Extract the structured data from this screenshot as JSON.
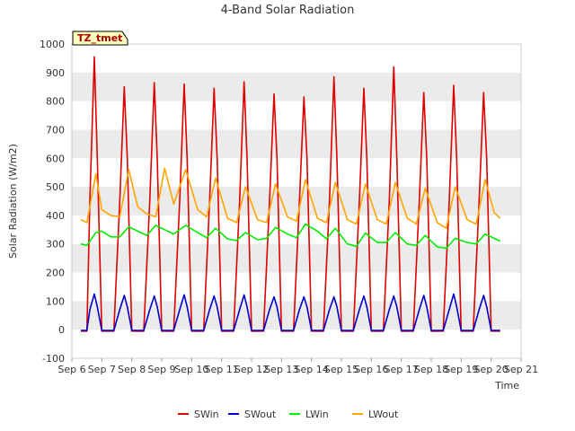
{
  "chart_data": {
    "type": "line",
    "title": "4-Band Solar Radiation",
    "xlabel": "Time",
    "ylabel": "Solar Radiation (W/m2)",
    "ylim": [
      -100,
      1000
    ],
    "yticks": [
      -100,
      0,
      100,
      200,
      300,
      400,
      500,
      600,
      700,
      800,
      900,
      1000
    ],
    "xlim": [
      6,
      21
    ],
    "xticks": [
      {
        "x": 6,
        "label": "Sep 6"
      },
      {
        "x": 7,
        "label": "Sep 7"
      },
      {
        "x": 8,
        "label": "Sep 8"
      },
      {
        "x": 9,
        "label": "Sep 9"
      },
      {
        "x": 10,
        "label": "Sep 10"
      },
      {
        "x": 11,
        "label": "Sep 11"
      },
      {
        "x": 12,
        "label": "Sep 12"
      },
      {
        "x": 13,
        "label": "Sep 13"
      },
      {
        "x": 14,
        "label": "Sep 14"
      },
      {
        "x": 15,
        "label": "Sep 15"
      },
      {
        "x": 16,
        "label": "Sep 16"
      },
      {
        "x": 17,
        "label": "Sep 17"
      },
      {
        "x": 18,
        "label": "Sep 18"
      },
      {
        "x": 19,
        "label": "Sep 19"
      },
      {
        "x": 20,
        "label": "Sep 20"
      },
      {
        "x": 21,
        "label": "Sep 21"
      }
    ],
    "grid": "horizontal bands",
    "legend_position": "bottom",
    "annotation": "TZ_tmet",
    "series": [
      {
        "name": "SWin",
        "color": "#dd0000",
        "x": [
          6.3,
          6.5,
          6.6,
          6.75,
          6.85,
          7.0,
          7.2,
          7.4,
          7.6,
          7.75,
          7.85,
          8.0,
          8.2,
          8.4,
          8.6,
          8.75,
          8.85,
          9.0,
          9.2,
          9.4,
          9.6,
          9.75,
          9.85,
          10.0,
          10.2,
          10.4,
          10.6,
          10.75,
          10.85,
          11.0,
          11.2,
          11.4,
          11.6,
          11.75,
          11.85,
          12.0,
          12.2,
          12.4,
          12.6,
          12.75,
          12.85,
          13.0,
          13.2,
          13.4,
          13.6,
          13.75,
          13.85,
          14.0,
          14.2,
          14.4,
          14.6,
          14.75,
          14.85,
          15.0,
          15.2,
          15.4,
          15.6,
          15.75,
          15.85,
          16.0,
          16.2,
          16.4,
          16.6,
          16.75,
          16.85,
          17.0,
          17.2,
          17.4,
          17.6,
          17.75,
          17.85,
          18.0,
          18.2,
          18.4,
          18.6,
          18.75,
          18.85,
          19.0,
          19.2,
          19.4,
          19.6,
          19.75,
          19.85,
          20.0,
          20.2,
          20.3
        ],
        "y": [
          -5,
          -5,
          450,
          955,
          600,
          -5,
          -5,
          -5,
          450,
          850,
          600,
          -5,
          -5,
          -5,
          450,
          865,
          600,
          -5,
          -5,
          -5,
          450,
          860,
          600,
          -5,
          -5,
          -5,
          450,
          845,
          600,
          -5,
          -5,
          -5,
          450,
          868,
          600,
          -5,
          -5,
          -5,
          450,
          825,
          600,
          -5,
          -5,
          -5,
          450,
          815,
          600,
          -5,
          -5,
          -5,
          450,
          885,
          600,
          -5,
          -5,
          -5,
          450,
          845,
          600,
          -5,
          -5,
          -5,
          450,
          920,
          600,
          -5,
          -5,
          -5,
          450,
          830,
          600,
          -5,
          -5,
          -5,
          450,
          855,
          600,
          -5,
          -5,
          -5,
          450,
          830,
          600,
          -5,
          -5,
          -5
        ]
      },
      {
        "name": "SWout",
        "color": "#0000cc",
        "x": [
          6.3,
          6.5,
          6.6,
          6.75,
          6.85,
          7.0,
          7.2,
          7.4,
          7.6,
          7.75,
          7.85,
          8.0,
          8.2,
          8.4,
          8.6,
          8.75,
          8.85,
          9.0,
          9.2,
          9.4,
          9.6,
          9.75,
          9.85,
          10.0,
          10.2,
          10.4,
          10.6,
          10.75,
          10.85,
          11.0,
          11.2,
          11.4,
          11.6,
          11.75,
          11.85,
          12.0,
          12.2,
          12.4,
          12.6,
          12.75,
          12.85,
          13.0,
          13.2,
          13.4,
          13.6,
          13.75,
          13.85,
          14.0,
          14.2,
          14.4,
          14.6,
          14.75,
          14.85,
          15.0,
          15.2,
          15.4,
          15.6,
          15.75,
          15.85,
          16.0,
          16.2,
          16.4,
          16.6,
          16.75,
          16.85,
          17.0,
          17.2,
          17.4,
          17.6,
          17.75,
          17.85,
          18.0,
          18.2,
          18.4,
          18.6,
          18.75,
          18.85,
          19.0,
          19.2,
          19.4,
          19.6,
          19.75,
          19.85,
          20.0,
          20.2,
          20.3
        ],
        "y": [
          -3,
          -3,
          70,
          125,
          80,
          -3,
          -3,
          -3,
          70,
          120,
          80,
          -3,
          -3,
          -3,
          70,
          118,
          80,
          -3,
          -3,
          -3,
          70,
          122,
          80,
          -3,
          -3,
          -3,
          70,
          118,
          80,
          -3,
          -3,
          -3,
          70,
          122,
          80,
          -3,
          -3,
          -3,
          70,
          115,
          80,
          -3,
          -3,
          -3,
          70,
          115,
          80,
          -3,
          -3,
          -3,
          70,
          115,
          80,
          -3,
          -3,
          -3,
          70,
          118,
          80,
          -3,
          -3,
          -3,
          70,
          118,
          80,
          -3,
          -3,
          -3,
          70,
          120,
          80,
          -3,
          -3,
          -3,
          70,
          125,
          80,
          -3,
          -3,
          -3,
          70,
          120,
          80,
          -3,
          -3,
          -3
        ]
      },
      {
        "name": "LWin",
        "color": "#00ee00",
        "x": [
          6.3,
          6.5,
          6.8,
          7.0,
          7.3,
          7.6,
          7.9,
          8.2,
          8.5,
          8.8,
          9.1,
          9.4,
          9.8,
          10.2,
          10.5,
          10.8,
          11.2,
          11.5,
          11.8,
          12.2,
          12.5,
          12.8,
          13.2,
          13.5,
          13.8,
          14.2,
          14.5,
          14.8,
          15.2,
          15.5,
          15.8,
          16.2,
          16.5,
          16.8,
          17.2,
          17.5,
          17.8,
          18.2,
          18.5,
          18.8,
          19.2,
          19.5,
          19.8,
          20.1,
          20.3
        ],
        "y": [
          300,
          295,
          340,
          345,
          325,
          325,
          360,
          345,
          330,
          365,
          350,
          335,
          365,
          340,
          322,
          355,
          318,
          312,
          340,
          315,
          320,
          358,
          335,
          322,
          370,
          345,
          318,
          355,
          300,
          292,
          338,
          305,
          305,
          340,
          300,
          295,
          330,
          290,
          285,
          320,
          305,
          300,
          335,
          320,
          310
        ]
      },
      {
        "name": "LWout",
        "color": "#ffa500",
        "x": [
          6.3,
          6.5,
          6.8,
          7.0,
          7.3,
          7.6,
          7.9,
          8.2,
          8.5,
          8.8,
          9.1,
          9.4,
          9.8,
          10.2,
          10.5,
          10.8,
          11.2,
          11.5,
          11.8,
          12.2,
          12.5,
          12.8,
          13.2,
          13.5,
          13.8,
          14.2,
          14.5,
          14.8,
          15.2,
          15.5,
          15.8,
          16.2,
          16.5,
          16.8,
          17.2,
          17.5,
          17.8,
          18.2,
          18.5,
          18.8,
          19.2,
          19.5,
          19.8,
          20.1,
          20.3
        ],
        "y": [
          385,
          375,
          545,
          420,
          400,
          395,
          560,
          430,
          405,
          395,
          565,
          440,
          560,
          420,
          395,
          530,
          390,
          375,
          500,
          385,
          375,
          510,
          395,
          380,
          525,
          390,
          375,
          515,
          385,
          370,
          510,
          385,
          370,
          515,
          390,
          370,
          495,
          375,
          355,
          500,
          385,
          370,
          525,
          410,
          390
        ]
      }
    ]
  }
}
